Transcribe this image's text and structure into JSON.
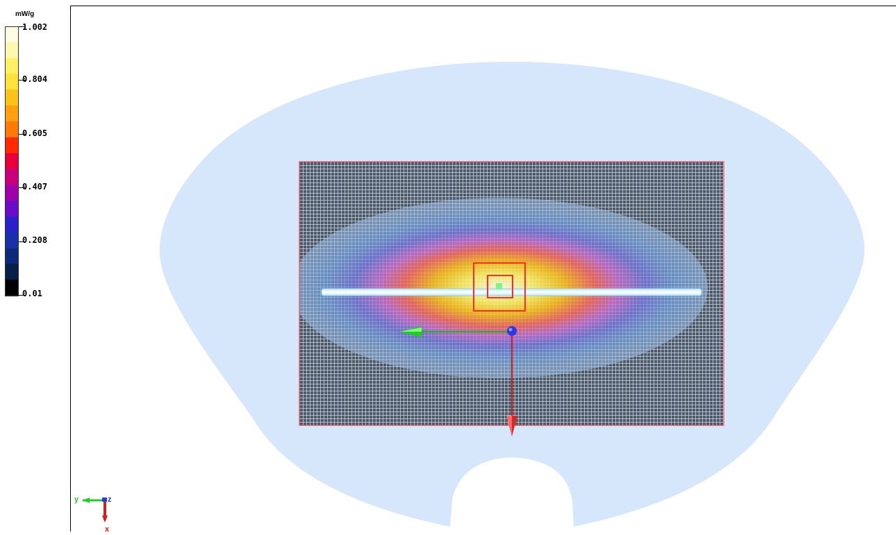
{
  "legend": {
    "unit": "mW/g",
    "ticks": [
      "1.002",
      "0.804",
      "0.605",
      "0.407",
      "0.208",
      "0.01"
    ],
    "colors": [
      "#fffbe0",
      "#fff7b0",
      "#fff066",
      "#ffe23a",
      "#ffc21a",
      "#ffa010",
      "#ff7a08",
      "#ff2a00",
      "#e8003c",
      "#c8007a",
      "#a000a8",
      "#6a0cc8",
      "#2a22c8",
      "#1830a8",
      "#0c2a78",
      "#082048",
      "#000000"
    ]
  },
  "axes": {
    "y_label": "y",
    "z_label": "z",
    "x_label": "x"
  },
  "colors": {
    "phantom": "#d6e6fb",
    "grid_line": "#ffffff",
    "grid_bg": "#4d5a6b",
    "marker": "#ff2a2a"
  }
}
